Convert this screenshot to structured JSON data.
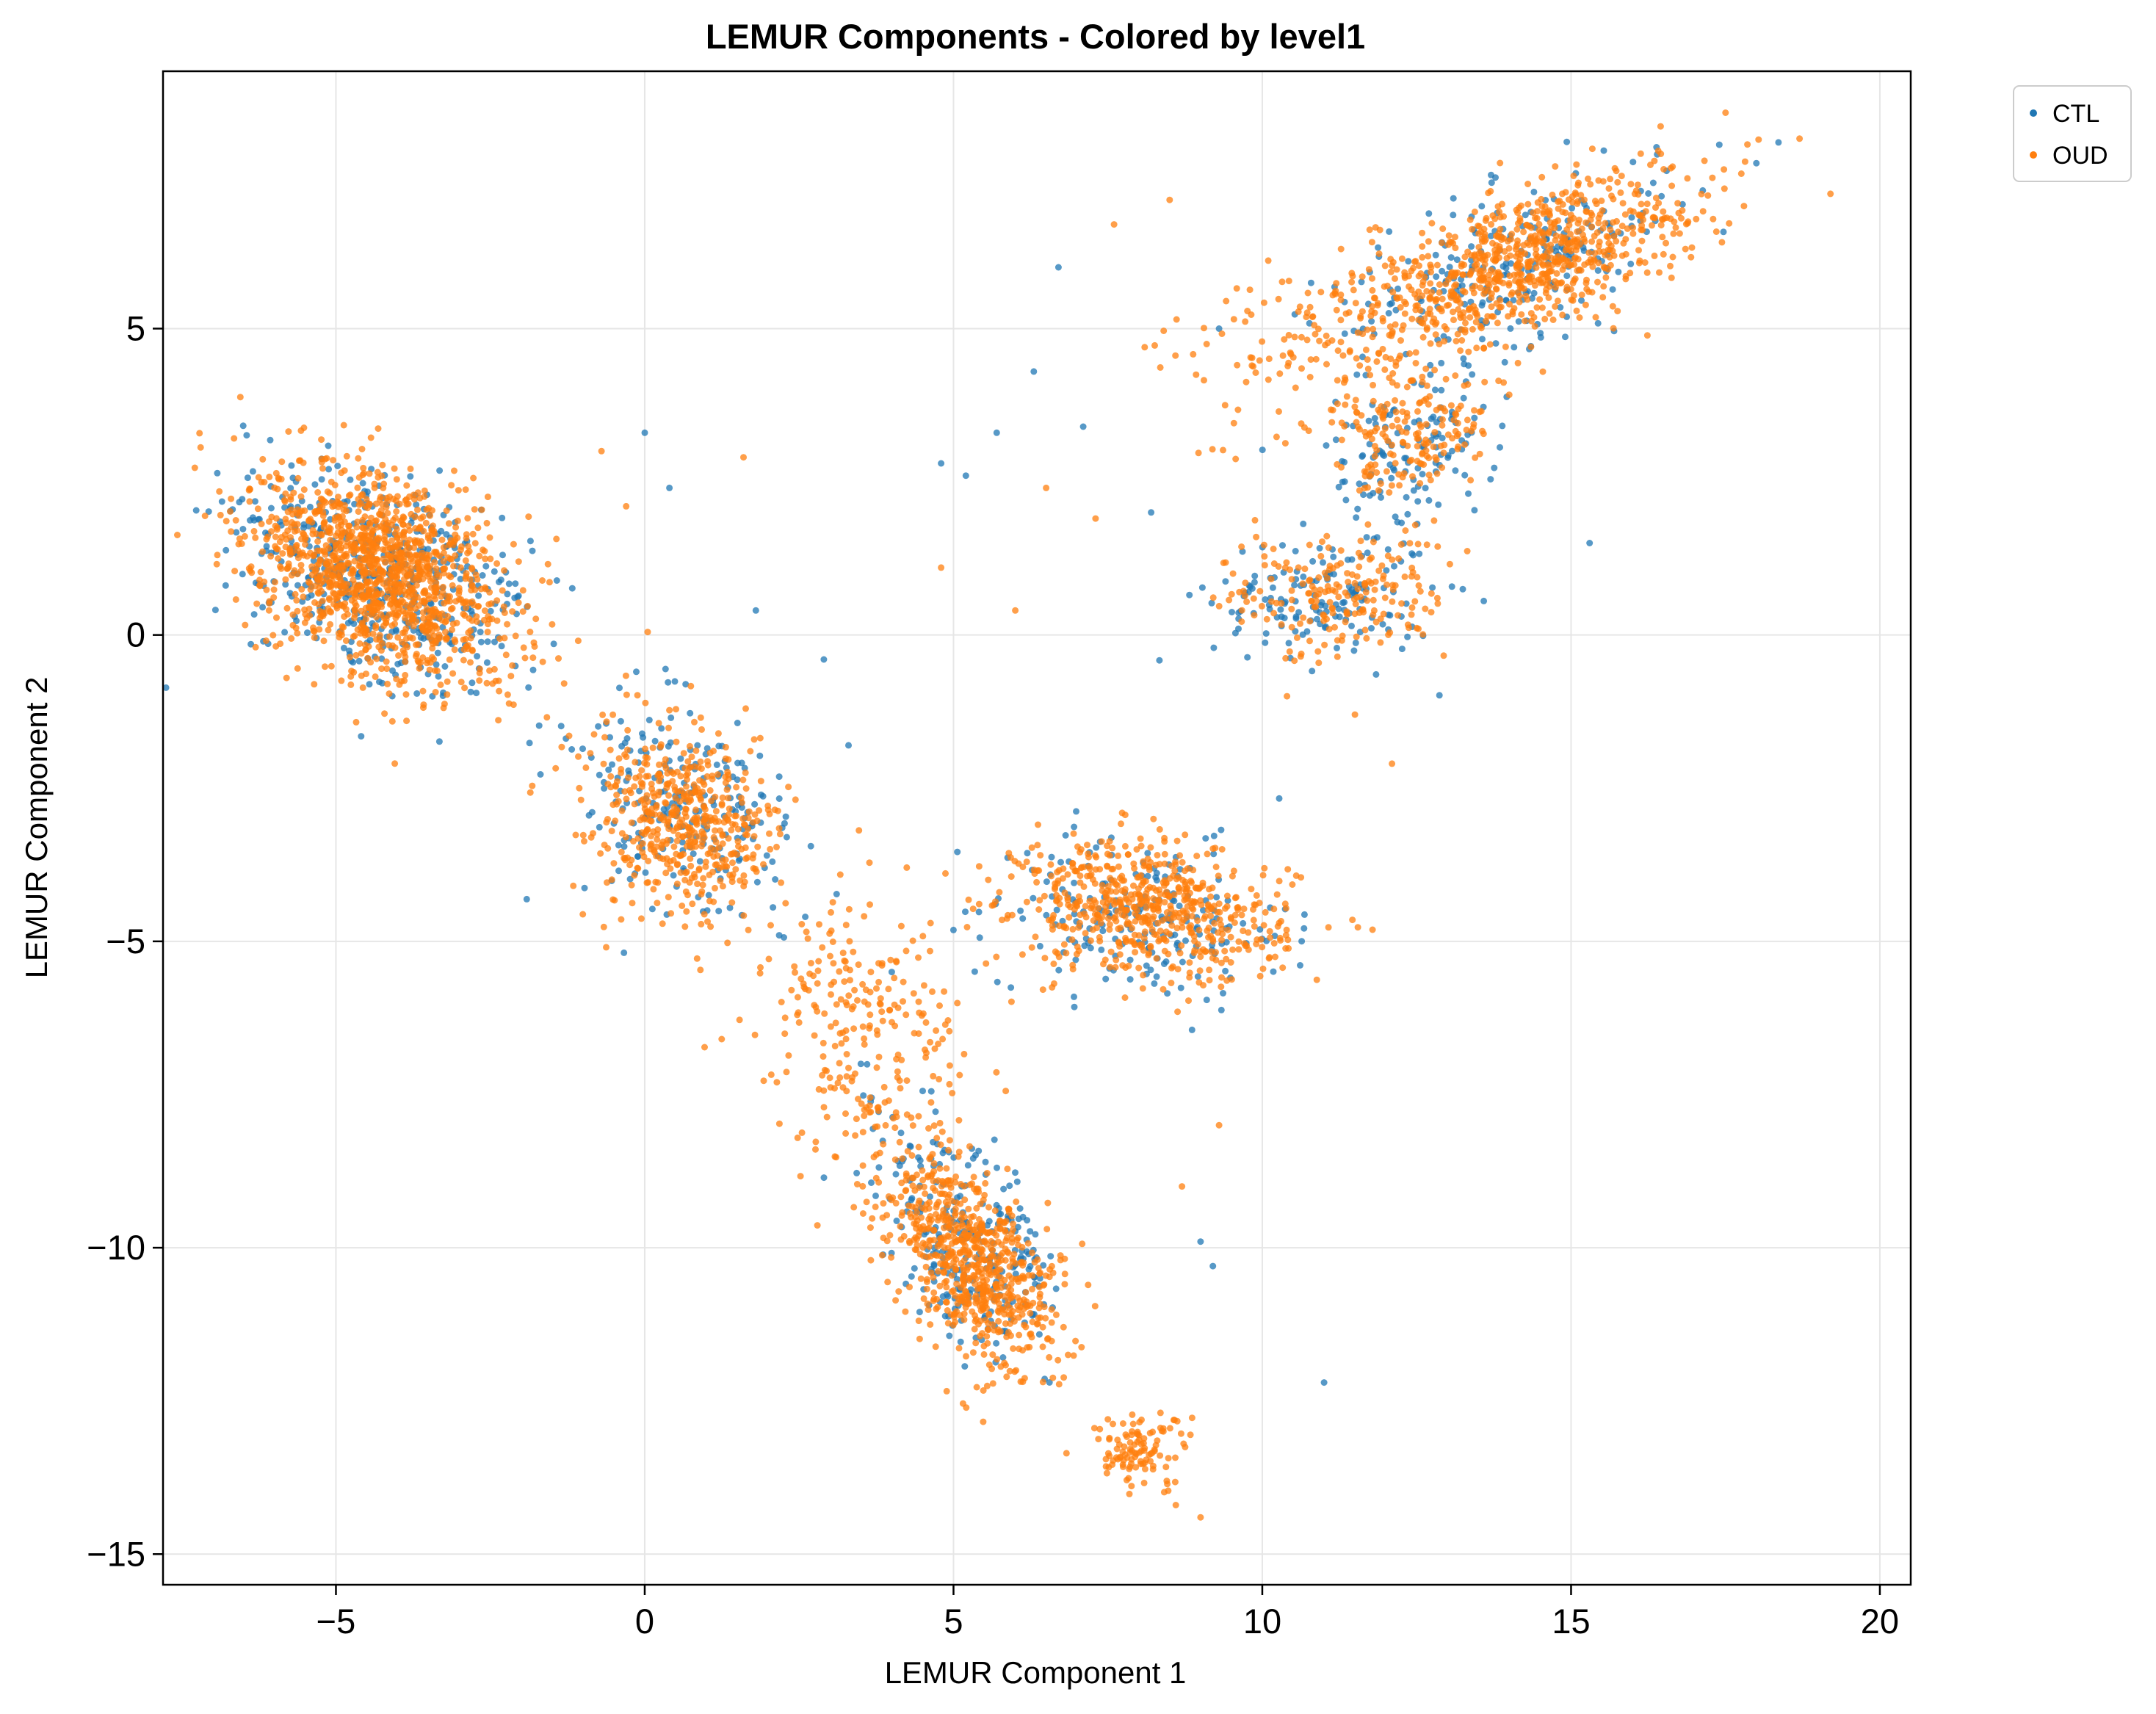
{
  "chart_data": {
    "type": "scatter",
    "title": "LEMUR Components - Colored by level1",
    "xlabel": "LEMUR Component 1",
    "ylabel": "LEMUR Component 2",
    "xlim": [
      -7.8,
      20.5
    ],
    "ylim": [
      -15.5,
      9.2
    ],
    "xticks": [
      -5,
      0,
      5,
      10,
      15,
      20
    ],
    "yticks": [
      5,
      0,
      -5,
      -10,
      -15
    ],
    "xtick_labels": [
      "−5",
      "0",
      "5",
      "10",
      "15",
      "20"
    ],
    "ytick_labels": [
      "5",
      "0",
      "−5",
      "−10",
      "−15"
    ],
    "grid": true,
    "legend": {
      "placement": "outside-top-right"
    },
    "series": [
      {
        "name": "CTL",
        "color": "#1f77b4",
        "clusters": [
          {
            "cx": -4.3,
            "cy": 0.9,
            "sx": 1.25,
            "sy": 0.8,
            "angle_deg": -33,
            "n": 500
          },
          {
            "cx": 0.6,
            "cy": -2.8,
            "sx": 0.9,
            "sy": 0.75,
            "angle_deg": -50,
            "n": 220
          },
          {
            "cx": 8.0,
            "cy": -4.6,
            "sx": 1.2,
            "sy": 0.65,
            "angle_deg": -8,
            "n": 200
          },
          {
            "cx": 5.3,
            "cy": -10.0,
            "sx": 1.1,
            "sy": 0.6,
            "angle_deg": -58,
            "n": 260
          },
          {
            "cx": 14.0,
            "cy": 6.0,
            "sx": 1.5,
            "sy": 0.6,
            "angle_deg": 22,
            "n": 240
          },
          {
            "cx": 11.0,
            "cy": 0.6,
            "sx": 0.9,
            "sy": 0.55,
            "angle_deg": 0,
            "n": 150
          },
          {
            "cx": 12.4,
            "cy": 3.0,
            "sx": 0.7,
            "sy": 0.55,
            "angle_deg": 30,
            "n": 120
          }
        ],
        "outliers": [
          [
            0.0,
            3.3
          ],
          [
            0.4,
            2.4
          ],
          [
            6.7,
            6.0
          ],
          [
            6.3,
            4.3
          ],
          [
            5.7,
            3.3
          ],
          [
            11.0,
            -12.2
          ],
          [
            9.2,
            -10.3
          ],
          [
            2.9,
            -0.4
          ],
          [
            4.8,
            2.8
          ],
          [
            5.2,
            2.6
          ],
          [
            1.8,
            0.4
          ],
          [
            7.1,
            3.4
          ],
          [
            4.0,
            -5.5
          ],
          [
            3.5,
            -7.0
          ],
          [
            2.6,
            -4.6
          ],
          [
            9.0,
            -9.9
          ],
          [
            15.3,
            1.5
          ],
          [
            12.8,
            4.0
          ],
          [
            17.4,
            8.0
          ],
          [
            18.0,
            7.7
          ],
          [
            9.3,
            5.0
          ],
          [
            8.2,
            2.0
          ],
          [
            3.3,
            -1.8
          ],
          [
            2.3,
            -3.3
          ]
        ]
      },
      {
        "name": "OUD",
        "color": "#ff7f0e",
        "clusters": [
          {
            "cx": -4.3,
            "cy": 1.0,
            "sx": 1.15,
            "sy": 0.72,
            "angle_deg": -33,
            "n": 1300
          },
          {
            "cx": 0.6,
            "cy": -3.0,
            "sx": 0.8,
            "sy": 0.65,
            "angle_deg": -50,
            "n": 500
          },
          {
            "cx": 8.2,
            "cy": -4.5,
            "sx": 1.1,
            "sy": 0.55,
            "angle_deg": -8,
            "n": 600
          },
          {
            "cx": 5.3,
            "cy": -10.2,
            "sx": 1.0,
            "sy": 0.5,
            "angle_deg": -58,
            "n": 700
          },
          {
            "cx": 14.2,
            "cy": 6.1,
            "sx": 1.45,
            "sy": 0.55,
            "angle_deg": 22,
            "n": 800
          },
          {
            "cx": 8.0,
            "cy": -13.3,
            "sx": 0.4,
            "sy": 0.3,
            "angle_deg": 0,
            "n": 110
          },
          {
            "cx": 11.2,
            "cy": 0.6,
            "sx": 0.9,
            "sy": 0.5,
            "angle_deg": 0,
            "n": 200
          },
          {
            "cx": 12.5,
            "cy": 3.3,
            "sx": 0.65,
            "sy": 0.5,
            "angle_deg": 30,
            "n": 160
          },
          {
            "cx": 3.5,
            "cy": -6.5,
            "sx": 1.2,
            "sy": 0.9,
            "angle_deg": -60,
            "n": 260
          },
          {
            "cx": 11.0,
            "cy": 4.8,
            "sx": 1.2,
            "sy": 0.8,
            "angle_deg": 20,
            "n": 140
          }
        ],
        "outliers": [
          [
            18.7,
            8.1
          ],
          [
            19.2,
            7.2
          ],
          [
            17.8,
            7.0
          ],
          [
            16.5,
            7.6
          ],
          [
            7.6,
            6.7
          ],
          [
            8.5,
            7.1
          ],
          [
            7.3,
            1.9
          ],
          [
            6.5,
            2.4
          ],
          [
            1.6,
            2.9
          ],
          [
            -0.3,
            2.1
          ],
          [
            -0.7,
            3.0
          ],
          [
            4.8,
            1.1
          ],
          [
            8.7,
            -9.0
          ],
          [
            9.3,
            -8.0
          ],
          [
            12.1,
            -2.1
          ],
          [
            9.0,
            -14.4
          ],
          [
            8.6,
            -14.2
          ],
          [
            7.5,
            -12.8
          ],
          [
            -5.8,
            -0.7
          ],
          [
            -6.3,
            -0.2
          ],
          [
            11.5,
            -1.3
          ],
          [
            10.4,
            -1.0
          ],
          [
            9.9,
            1.6
          ],
          [
            6.0,
            0.4
          ]
        ]
      }
    ]
  }
}
